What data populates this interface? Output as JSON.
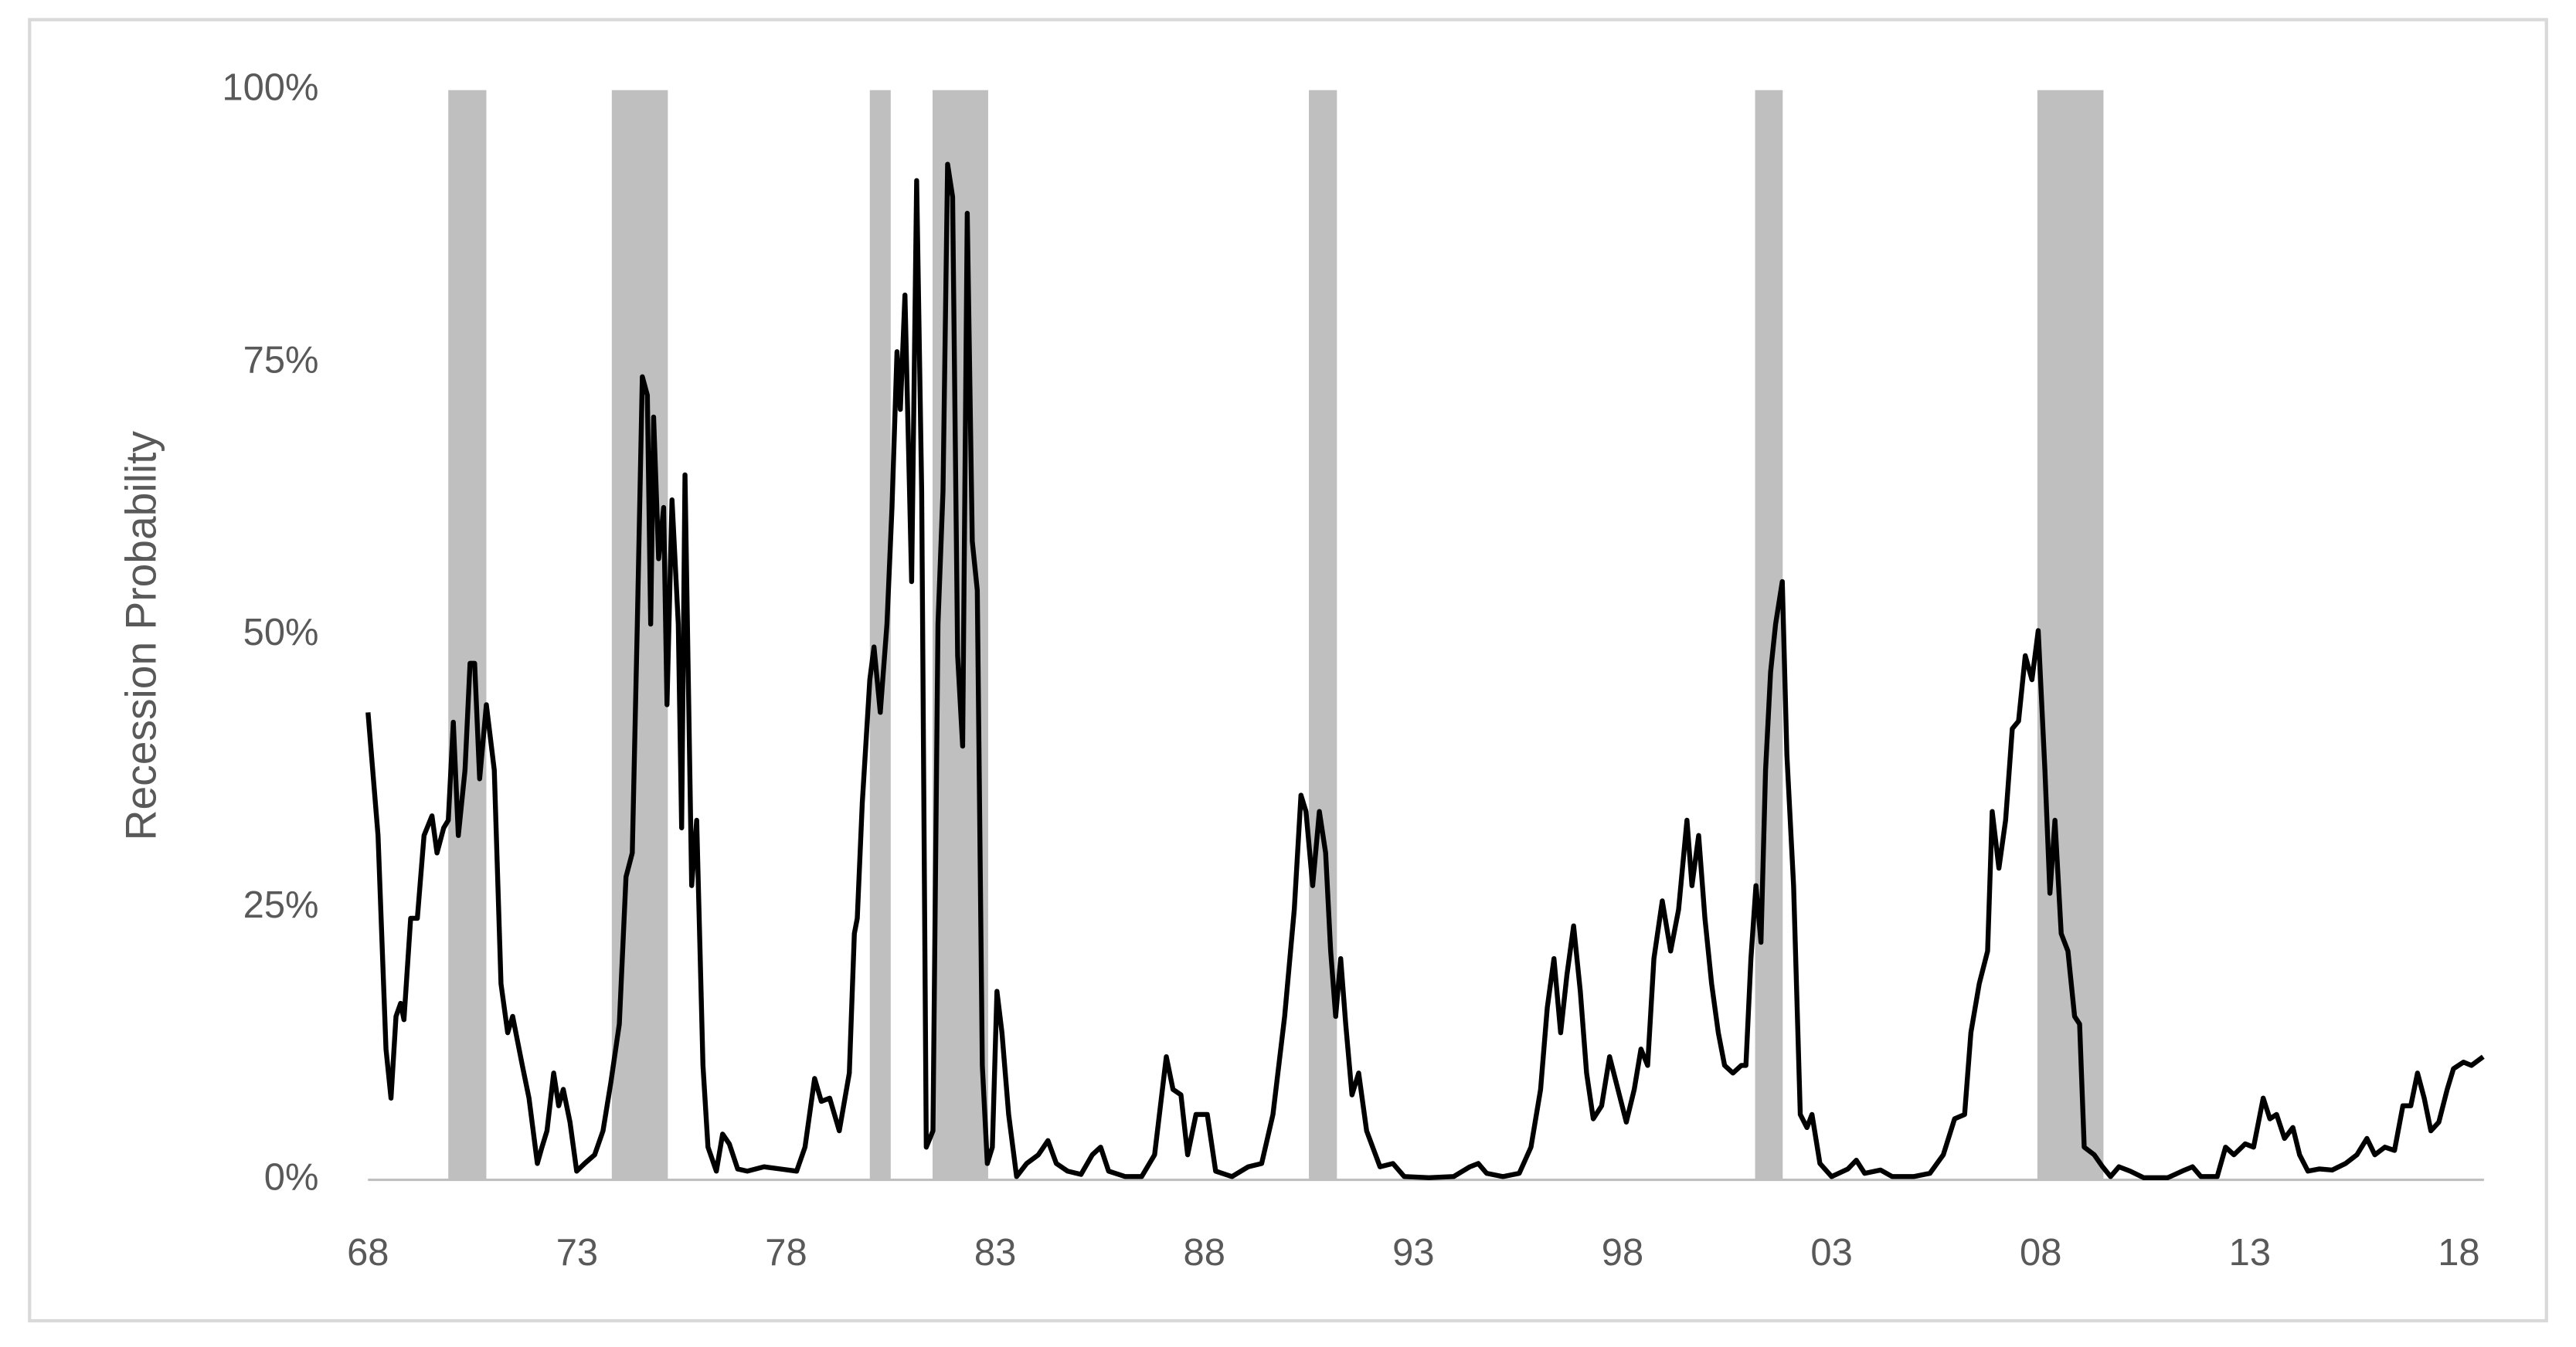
{
  "chart_data": {
    "type": "line",
    "y_label": "Recession Probability",
    "color": "#000000",
    "shade_color": "#bfbfbf",
    "shaded_periods": [
      [
        1969.92,
        1970.83
      ],
      [
        1973.83,
        1975.17
      ],
      [
        1980.0,
        1980.5
      ],
      [
        1981.5,
        1982.83
      ],
      [
        1990.5,
        1991.17
      ],
      [
        2001.17,
        2001.83
      ],
      [
        2007.92,
        2009.5
      ]
    ],
    "xlim": [
      1968,
      2018.6
    ],
    "xticks": [
      {
        "value": 1968,
        "label": "68"
      },
      {
        "value": 1973,
        "label": "73"
      },
      {
        "value": 1978,
        "label": "78"
      },
      {
        "value": 1983,
        "label": "83"
      },
      {
        "value": 1988,
        "label": "88"
      },
      {
        "value": 1993,
        "label": "93"
      },
      {
        "value": 1998,
        "label": "98"
      },
      {
        "value": 2003,
        "label": "03"
      },
      {
        "value": 2008,
        "label": "08"
      },
      {
        "value": 2013,
        "label": "13"
      },
      {
        "value": 2018,
        "label": "18"
      }
    ],
    "ylim": [
      0,
      100
    ],
    "yticks": [
      {
        "value": 0,
        "label": "0%"
      },
      {
        "value": 25,
        "label": "25%"
      },
      {
        "value": 50,
        "label": "50%"
      },
      {
        "value": 75,
        "label": "75%"
      },
      {
        "value": 100,
        "label": "100%"
      }
    ],
    "x": [
      1968.0,
      1968.24,
      1968.43,
      1968.55,
      1968.67,
      1968.78,
      1968.86,
      1969.02,
      1969.18,
      1969.34,
      1969.53,
      1969.65,
      1969.81,
      1969.92,
      1970.04,
      1970.16,
      1970.32,
      1970.44,
      1970.55,
      1970.67,
      1970.83,
      1971.02,
      1971.18,
      1971.34,
      1971.46,
      1971.69,
      1971.85,
      1972.05,
      1972.16,
      1972.28,
      1972.44,
      1972.56,
      1972.67,
      1972.83,
      1972.99,
      1973.18,
      1973.42,
      1973.62,
      1973.81,
      1974.01,
      1974.17,
      1974.32,
      1974.44,
      1974.56,
      1974.68,
      1974.76,
      1974.83,
      1974.95,
      1975.07,
      1975.15,
      1975.27,
      1975.42,
      1975.5,
      1975.58,
      1975.74,
      1975.86,
      1976.01,
      1976.13,
      1976.33,
      1976.48,
      1976.64,
      1976.84,
      1977.07,
      1977.47,
      1977.86,
      1978.25,
      1978.45,
      1978.68,
      1978.84,
      1979.04,
      1979.27,
      1979.51,
      1979.63,
      1979.7,
      1979.82,
      1980.0,
      1980.1,
      1980.25,
      1980.41,
      1980.53,
      1980.65,
      1980.73,
      1980.84,
      1981.0,
      1981.12,
      1981.24,
      1981.35,
      1981.51,
      1981.63,
      1981.75,
      1981.86,
      1981.98,
      1982.1,
      1982.22,
      1982.33,
      1982.45,
      1982.57,
      1982.69,
      1982.81,
      1982.93,
      1983.04,
      1983.16,
      1983.32,
      1983.51,
      1983.75,
      1984.03,
      1984.26,
      1984.46,
      1984.73,
      1985.05,
      1985.32,
      1985.52,
      1985.71,
      1986.11,
      1986.5,
      1986.81,
      1987.09,
      1987.25,
      1987.44,
      1987.6,
      1987.8,
      1988.07,
      1988.27,
      1988.66,
      1989.05,
      1989.37,
      1989.64,
      1989.92,
      1990.15,
      1990.31,
      1990.43,
      1990.59,
      1990.75,
      1990.9,
      1991.02,
      1991.14,
      1991.26,
      1991.38,
      1991.53,
      1991.69,
      1991.88,
      1992.2,
      1992.51,
      1992.78,
      1993.37,
      1993.96,
      1994.35,
      1994.55,
      1994.75,
      1995.14,
      1995.53,
      1995.81,
      1996.04,
      1996.2,
      1996.36,
      1996.52,
      1996.67,
      1996.83,
      1996.99,
      1997.14,
      1997.3,
      1997.5,
      1997.69,
      1997.89,
      1998.09,
      1998.28,
      1998.44,
      1998.6,
      1998.75,
      1998.95,
      1999.15,
      1999.34,
      1999.54,
      1999.66,
      1999.82,
      1999.97,
      2000.13,
      2000.29,
      2000.44,
      2000.64,
      2000.84,
      2000.95,
      2001.07,
      2001.19,
      2001.31,
      2001.42,
      2001.54,
      2001.66,
      2001.82,
      2001.93,
      2002.09,
      2002.25,
      2002.41,
      2002.53,
      2002.72,
      2003.0,
      2003.39,
      2003.59,
      2003.79,
      2004.17,
      2004.45,
      2004.96,
      2005.35,
      2005.67,
      2005.94,
      2006.18,
      2006.33,
      2006.53,
      2006.73,
      2006.84,
      2007.0,
      2007.16,
      2007.32,
      2007.47,
      2007.63,
      2007.79,
      2007.94,
      2008.1,
      2008.22,
      2008.34,
      2008.49,
      2008.65,
      2008.81,
      2008.93,
      2009.04,
      2009.28,
      2009.48,
      2009.67,
      2009.87,
      2010.14,
      2010.46,
      2011.04,
      2011.44,
      2011.63,
      2011.83,
      2012.22,
      2012.42,
      2012.62,
      2012.89,
      2013.09,
      2013.32,
      2013.48,
      2013.64,
      2013.83,
      2014.03,
      2014.19,
      2014.39,
      2014.66,
      2014.97,
      2015.29,
      2015.56,
      2015.8,
      2015.99,
      2016.23,
      2016.46,
      2016.66,
      2016.85,
      2017.01,
      2017.17,
      2017.33,
      2017.52,
      2017.72,
      2017.87,
      2018.11,
      2018.3,
      2018.58
    ],
    "values": [
      42.9,
      31.6,
      12,
      7.5,
      15,
      16.2,
      14.7,
      24,
      24,
      31.6,
      33.4,
      30,
      32.3,
      33,
      42,
      31.6,
      37.6,
      47.4,
      47.4,
      36.8,
      43.6,
      37.6,
      18,
      13.5,
      15,
      10.5,
      7.5,
      1.5,
      3,
      4.5,
      9.8,
      6.8,
      8.3,
      5.3,
      0.8,
      1.5,
      2.3,
      4.5,
      9,
      14.3,
      27.8,
      30,
      51,
      73.7,
      72,
      51,
      70,
      57,
      61.7,
      43.6,
      62.4,
      51,
      32.3,
      64.7,
      27,
      33,
      10.5,
      3,
      0.8,
      4.2,
      3.3,
      1,
      0.8,
      1.2,
      1,
      0.8,
      3,
      9.3,
      7.2,
      7.5,
      4.5,
      9.8,
      22.6,
      24,
      34.6,
      45.9,
      48.9,
      42.9,
      51,
      61.7,
      76,
      70.7,
      81.2,
      54.9,
      91.7,
      63.2,
      3,
      4.5,
      51,
      63.2,
      93.2,
      90.2,
      48.1,
      39.8,
      88.7,
      58.6,
      54.1,
      10.5,
      1.5,
      3,
      17.3,
      13.5,
      6,
      0.3,
      1.5,
      2.3,
      3.6,
      1.5,
      0.8,
      0.5,
      2.3,
      3,
      0.8,
      0.3,
      0.3,
      2.3,
      11.3,
      8.3,
      7.8,
      2.3,
      6,
      6,
      0.8,
      0.3,
      1.2,
      1.5,
      6,
      15,
      24.8,
      35.3,
      33.8,
      27,
      33.8,
      30,
      21,
      15,
      20.3,
      14.3,
      7.8,
      9.8,
      4.5,
      1.2,
      1.5,
      0.3,
      0.2,
      0.3,
      1.2,
      1.5,
      0.6,
      0.3,
      0.6,
      3,
      8.3,
      15.8,
      20.3,
      13.5,
      18.8,
      23.3,
      17.3,
      9.8,
      5.6,
      6.8,
      11.3,
      8.3,
      5.3,
      8.3,
      12,
      10.5,
      20.3,
      25.6,
      21,
      24.8,
      33,
      27,
      31.6,
      24,
      18,
      13.5,
      10.5,
      9.8,
      10.5,
      10.5,
      20.3,
      27,
      21.8,
      37.6,
      46.6,
      51,
      54.9,
      39,
      27,
      6,
      4.8,
      6,
      1.5,
      0.3,
      1,
      1.8,
      0.6,
      0.9,
      0.3,
      0.3,
      0.6,
      2.3,
      5.6,
      6,
      13.5,
      18,
      21,
      33.8,
      28.6,
      33,
      41.4,
      42.1,
      48.1,
      45.9,
      50.4,
      37.6,
      26.3,
      33,
      22.6,
      21,
      15,
      14.3,
      3,
      2.3,
      1.2,
      0.3,
      1.2,
      0.8,
      0.2,
      0.2,
      0.9,
      1.2,
      0.3,
      0.3,
      3,
      2.3,
      3.3,
      3,
      7.5,
      5.6,
      6,
      3.8,
      4.8,
      2.3,
      0.8,
      1,
      0.9,
      1.5,
      2.3,
      3.8,
      2.3,
      3,
      2.7,
      6.8,
      6.8,
      9.8,
      7.5,
      4.5,
      5.3,
      8.3,
      10.2,
      10.8,
      10.5,
      11.3
    ]
  }
}
